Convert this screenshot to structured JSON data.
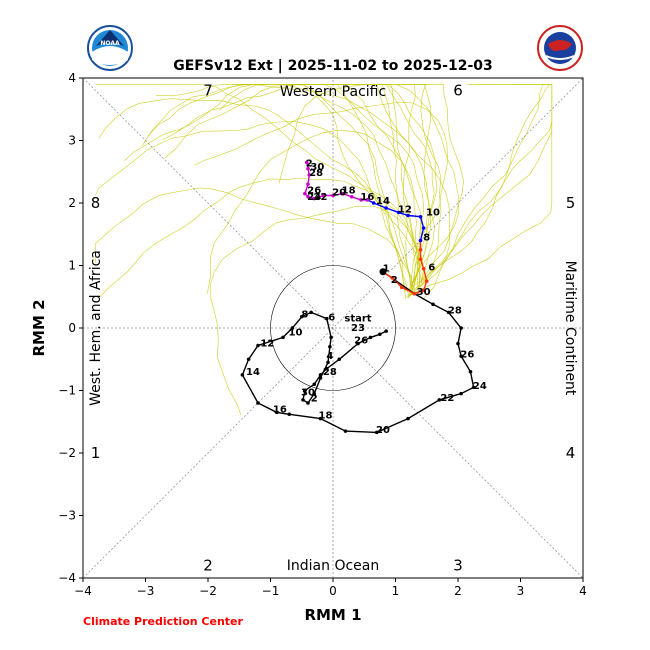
{
  "chart_data": {
    "type": "line",
    "title": "GEFSv12 Ext | 2025-11-02 to 2025-12-03",
    "xlabel": "RMM 1",
    "ylabel": "RMM 2",
    "xlim": [
      -4,
      4
    ],
    "ylim": [
      -4,
      4
    ],
    "xticks": [
      "−4",
      "−3",
      "−2",
      "−1",
      "0",
      "1",
      "2",
      "3",
      "4"
    ],
    "yticks": [
      "−4",
      "−3",
      "−2",
      "−1",
      "0",
      "1",
      "2",
      "3",
      "4"
    ],
    "regions": {
      "top": "Western Pacific",
      "bottom": "Indian Ocean",
      "left": "West. Hem. and Africa",
      "right": "Maritime Continent"
    },
    "phases": [
      {
        "label": "7",
        "x": -2.0,
        "y": 3.8
      },
      {
        "label": "6",
        "x": 2.0,
        "y": 3.8
      },
      {
        "label": "8",
        "x": -3.8,
        "y": 2.0
      },
      {
        "label": "5",
        "x": 3.8,
        "y": 2.0
      },
      {
        "label": "1",
        "x": -3.8,
        "y": -2.0
      },
      {
        "label": "4",
        "x": 3.8,
        "y": -2.0
      },
      {
        "label": "2",
        "x": -2.0,
        "y": -3.8
      },
      {
        "label": "3",
        "x": 2.0,
        "y": -3.8
      }
    ],
    "credit": "Climate Prediction Center",
    "series": [
      {
        "name": "observed",
        "color": "#000000",
        "points": [
          [
            0.85,
            -0.05
          ],
          [
            0.75,
            -0.1
          ],
          [
            0.6,
            -0.15
          ],
          [
            0.4,
            -0.25
          ],
          [
            0.1,
            -0.5
          ],
          [
            -0.1,
            -0.65
          ],
          [
            -0.2,
            -0.75
          ],
          [
            -0.3,
            -0.9
          ],
          [
            -0.45,
            -1.0
          ],
          [
            -0.48,
            -1.15
          ],
          [
            -0.4,
            -1.2
          ],
          [
            -0.3,
            -1.05
          ],
          [
            -0.2,
            -0.8
          ],
          [
            -0.08,
            -0.55
          ],
          [
            -0.05,
            -0.3
          ],
          [
            -0.03,
            -0.15
          ],
          [
            -0.1,
            0.15
          ],
          [
            -0.35,
            0.25
          ],
          [
            -0.5,
            0.18
          ],
          [
            -0.65,
            0.0
          ],
          [
            -0.8,
            -0.15
          ],
          [
            -1.2,
            -0.28
          ],
          [
            -1.35,
            -0.5
          ],
          [
            -1.45,
            -0.75
          ],
          [
            -1.2,
            -1.2
          ],
          [
            -0.9,
            -1.35
          ],
          [
            -0.7,
            -1.38
          ],
          [
            -0.2,
            -1.45
          ],
          [
            0.2,
            -1.65
          ],
          [
            0.7,
            -1.67
          ],
          [
            1.2,
            -1.45
          ],
          [
            1.7,
            -1.15
          ],
          [
            2.05,
            -1.05
          ],
          [
            2.25,
            -0.95
          ],
          [
            2.2,
            -0.7
          ],
          [
            2.05,
            -0.45
          ],
          [
            2.0,
            -0.25
          ],
          [
            2.05,
            0.0
          ],
          [
            1.85,
            0.25
          ],
          [
            1.6,
            0.38
          ],
          [
            1.3,
            0.55
          ],
          [
            0.8,
            0.9
          ]
        ],
        "labels": [
          {
            "text": "start",
            "x": 0.4,
            "y": 0.15
          },
          {
            "text": "23",
            "x": 0.4,
            "y": 0.0
          },
          {
            "text": "26",
            "x": 0.45,
            "y": -0.2
          },
          {
            "text": "28",
            "x": -0.05,
            "y": -0.7
          },
          {
            "text": "2",
            "x": -0.3,
            "y": -1.13
          },
          {
            "text": "30",
            "x": -0.4,
            "y": -1.03
          },
          {
            "text": "4",
            "x": -0.05,
            "y": -0.45
          },
          {
            "text": "6",
            "x": -0.02,
            "y": 0.17
          },
          {
            "text": "8",
            "x": -0.45,
            "y": 0.22
          },
          {
            "text": "10",
            "x": -0.6,
            "y": -0.07
          },
          {
            "text": "12",
            "x": -1.05,
            "y": -0.25
          },
          {
            "text": "14",
            "x": -1.28,
            "y": -0.7
          },
          {
            "text": "16",
            "x": -0.85,
            "y": -1.3
          },
          {
            "text": "18",
            "x": -0.12,
            "y": -1.4
          },
          {
            "text": "20",
            "x": 0.8,
            "y": -1.63
          },
          {
            "text": "22",
            "x": 1.83,
            "y": -1.12
          },
          {
            "text": "24",
            "x": 2.35,
            "y": -0.93
          },
          {
            "text": "26",
            "x": 2.15,
            "y": -0.42
          },
          {
            "text": "28",
            "x": 1.95,
            "y": 0.28
          },
          {
            "text": "30",
            "x": 1.45,
            "y": 0.58
          },
          {
            "text": "1",
            "x": 0.85,
            "y": 0.95
          }
        ]
      },
      {
        "name": "forecast-red",
        "color": "#ff3300",
        "points": [
          [
            0.8,
            0.9
          ],
          [
            0.95,
            0.8
          ],
          [
            1.1,
            0.65
          ],
          [
            1.3,
            0.55
          ],
          [
            1.45,
            0.6
          ],
          [
            1.5,
            0.75
          ],
          [
            1.45,
            0.95
          ],
          [
            1.4,
            1.1
          ],
          [
            1.4,
            1.25
          ],
          [
            1.4,
            1.4
          ]
        ],
        "labels": [
          {
            "text": "2",
            "x": 0.98,
            "y": 0.77
          },
          {
            "text": "6",
            "x": 1.58,
            "y": 0.97
          }
        ]
      },
      {
        "name": "forecast-blue",
        "color": "#0000ff",
        "points": [
          [
            1.4,
            1.4
          ],
          [
            1.45,
            1.6
          ],
          [
            1.4,
            1.78
          ],
          [
            1.2,
            1.8
          ],
          [
            1.05,
            1.85
          ],
          [
            0.85,
            1.92
          ],
          [
            0.65,
            2.0
          ],
          [
            0.55,
            2.05
          ]
        ],
        "labels": [
          {
            "text": "8",
            "x": 1.5,
            "y": 1.45
          },
          {
            "text": "10",
            "x": 1.6,
            "y": 1.85
          },
          {
            "text": "12",
            "x": 1.15,
            "y": 1.9
          },
          {
            "text": "14",
            "x": 0.8,
            "y": 2.03
          }
        ]
      },
      {
        "name": "forecast-magenta",
        "color": "#cc00cc",
        "points": [
          [
            0.55,
            2.05
          ],
          [
            0.45,
            2.05
          ],
          [
            0.3,
            2.1
          ],
          [
            0.15,
            2.15
          ],
          [
            0.0,
            2.12
          ],
          [
            -0.15,
            2.12
          ],
          [
            -0.3,
            2.07
          ],
          [
            -0.4,
            2.1
          ],
          [
            -0.45,
            2.15
          ],
          [
            -0.4,
            2.3
          ],
          [
            -0.38,
            2.45
          ],
          [
            -0.4,
            2.55
          ],
          [
            -0.42,
            2.65
          ]
        ],
        "labels": [
          {
            "text": "16",
            "x": 0.55,
            "y": 2.1
          },
          {
            "text": "18",
            "x": 0.25,
            "y": 2.2
          },
          {
            "text": "20",
            "x": 0.1,
            "y": 2.17
          },
          {
            "text": "22",
            "x": -0.2,
            "y": 2.1
          },
          {
            "text": "24",
            "x": -0.3,
            "y": 2.1
          },
          {
            "text": "26",
            "x": -0.3,
            "y": 2.2
          },
          {
            "text": "28",
            "x": -0.27,
            "y": 2.48
          },
          {
            "text": "30",
            "x": -0.25,
            "y": 2.58
          },
          {
            "text": "2",
            "x": -0.38,
            "y": 2.63
          }
        ]
      }
    ]
  }
}
